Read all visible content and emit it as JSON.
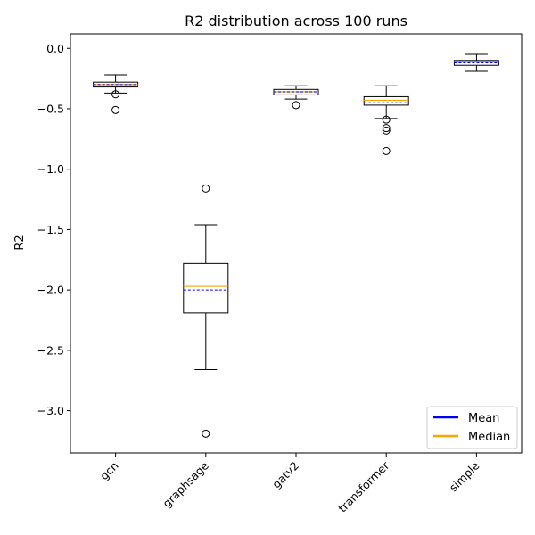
{
  "chart_data": {
    "type": "box",
    "title": "R2 distribution across 100 runs",
    "xlabel": "",
    "ylabel": "R2",
    "ylim": [
      -3.35,
      0.12
    ],
    "yticks": [
      0.0,
      -0.5,
      -1.0,
      -1.5,
      -2.0,
      -2.5,
      -3.0
    ],
    "ytick_labels": [
      "0.0",
      "−0.5",
      "−1.0",
      "−1.5",
      "−2.0",
      "−2.5",
      "−3.0"
    ],
    "categories": [
      "gcn",
      "graphsage",
      "gatv2",
      "transformer",
      "simple"
    ],
    "boxes": [
      {
        "whisker_low": -0.37,
        "q1": -0.32,
        "median": -0.3,
        "mean": -0.3,
        "q3": -0.28,
        "whisker_high": -0.22,
        "outliers": [
          -0.38,
          -0.51
        ]
      },
      {
        "whisker_low": -2.66,
        "q1": -2.19,
        "median": -1.97,
        "mean": -2.0,
        "q3": -1.78,
        "whisker_high": -1.46,
        "outliers": [
          -1.16,
          -3.19
        ]
      },
      {
        "whisker_low": -0.42,
        "q1": -0.385,
        "median": -0.36,
        "mean": -0.36,
        "q3": -0.34,
        "whisker_high": -0.31,
        "outliers": [
          -0.47
        ]
      },
      {
        "whisker_low": -0.58,
        "q1": -0.47,
        "median": -0.43,
        "mean": -0.45,
        "q3": -0.4,
        "whisker_high": -0.31,
        "outliers": [
          -0.59,
          -0.66,
          -0.68,
          -0.85
        ]
      },
      {
        "whisker_low": -0.19,
        "q1": -0.14,
        "median": -0.11,
        "mean": -0.12,
        "q3": -0.1,
        "whisker_high": -0.05,
        "outliers": []
      }
    ],
    "legend": {
      "position": "lower-right",
      "entries": [
        {
          "label": "Mean",
          "color": "#0000ff"
        },
        {
          "label": "Median",
          "color": "#ffa500"
        }
      ]
    },
    "colors": {
      "mean": "#0000ff",
      "median": "#ffa500",
      "box": "#000000"
    },
    "grid": false
  }
}
